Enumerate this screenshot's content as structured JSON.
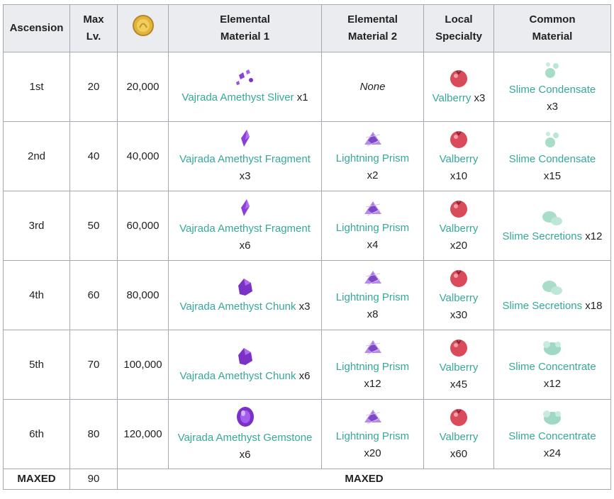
{
  "headers": {
    "ascension": "Ascension",
    "max_lv": [
      "Max",
      "Lv."
    ],
    "coin_icon": "mora-coin-icon",
    "elemental1": [
      "Elemental",
      "Material 1"
    ],
    "elemental2": [
      "Elemental",
      "Material 2"
    ],
    "local": [
      "Local",
      "Specialty"
    ],
    "common": [
      "Common",
      "Material"
    ]
  },
  "rows": [
    {
      "ascension": "1st",
      "max_lv": "20",
      "mora": "20,000",
      "elemental1": {
        "icon": "amethyst-sliver-icon",
        "name": "Vajrada Amethyst Sliver",
        "qty": "x1"
      },
      "elemental2": {
        "none": "None"
      },
      "local": {
        "icon": "valberry-icon",
        "name": "Valberry",
        "qty": "x3"
      },
      "common": {
        "icon": "slime-condensate-icon",
        "name": "Slime Condensate",
        "qty": "x3"
      }
    },
    {
      "ascension": "2nd",
      "max_lv": "40",
      "mora": "40,000",
      "elemental1": {
        "icon": "amethyst-fragment-icon",
        "name": "Vajrada Amethyst Fragment",
        "qty": "x3"
      },
      "elemental2": {
        "icon": "lightning-prism-icon",
        "name": "Lightning Prism",
        "qty": "x2"
      },
      "local": {
        "icon": "valberry-icon",
        "name": "Valberry",
        "qty": "x10"
      },
      "common": {
        "icon": "slime-condensate-icon",
        "name": "Slime Condensate",
        "qty": "x15"
      }
    },
    {
      "ascension": "3rd",
      "max_lv": "50",
      "mora": "60,000",
      "elemental1": {
        "icon": "amethyst-fragment-icon",
        "name": "Vajrada Amethyst Fragment",
        "qty": "x6"
      },
      "elemental2": {
        "icon": "lightning-prism-icon",
        "name": "Lightning Prism",
        "qty": "x4"
      },
      "local": {
        "icon": "valberry-icon",
        "name": "Valberry",
        "qty": "x20"
      },
      "common": {
        "icon": "slime-secretions-icon",
        "name": "Slime Secretions",
        "qty": "x12"
      }
    },
    {
      "ascension": "4th",
      "max_lv": "60",
      "mora": "80,000",
      "elemental1": {
        "icon": "amethyst-chunk-icon",
        "name": "Vajrada Amethyst Chunk",
        "qty": "x3"
      },
      "elemental2": {
        "icon": "lightning-prism-icon",
        "name": "Lightning Prism",
        "qty": "x8"
      },
      "local": {
        "icon": "valberry-icon",
        "name": "Valberry",
        "qty": "x30"
      },
      "common": {
        "icon": "slime-secretions-icon",
        "name": "Slime Secretions",
        "qty": "x18"
      }
    },
    {
      "ascension": "5th",
      "max_lv": "70",
      "mora": "100,000",
      "elemental1": {
        "icon": "amethyst-chunk-icon",
        "name": "Vajrada Amethyst Chunk",
        "qty": "x6"
      },
      "elemental2": {
        "icon": "lightning-prism-icon",
        "name": "Lightning Prism",
        "qty": "x12"
      },
      "local": {
        "icon": "valberry-icon",
        "name": "Valberry",
        "qty": "x45"
      },
      "common": {
        "icon": "slime-concentrate-icon",
        "name": "Slime Concentrate",
        "qty": "x12"
      }
    },
    {
      "ascension": "6th",
      "max_lv": "80",
      "mora": "120,000",
      "elemental1": {
        "icon": "amethyst-gemstone-icon",
        "name": "Vajrada Amethyst Gemstone",
        "qty": "x6"
      },
      "elemental2": {
        "icon": "lightning-prism-icon",
        "name": "Lightning Prism",
        "qty": "x20"
      },
      "local": {
        "icon": "valberry-icon",
        "name": "Valberry",
        "qty": "x60"
      },
      "common": {
        "icon": "slime-concentrate-icon",
        "name": "Slime Concentrate",
        "qty": "x24"
      }
    }
  ],
  "last_row": {
    "ascension": "MAXED",
    "max_lv": "90",
    "rest": "MAXED"
  },
  "colors": {
    "link": "#36a89a",
    "header_bg": "#eaecf0",
    "border": "#a2a9b1",
    "amethyst": "#8a3fd8",
    "valberry": "#d94a5a",
    "slime": "#9fd8c5"
  }
}
